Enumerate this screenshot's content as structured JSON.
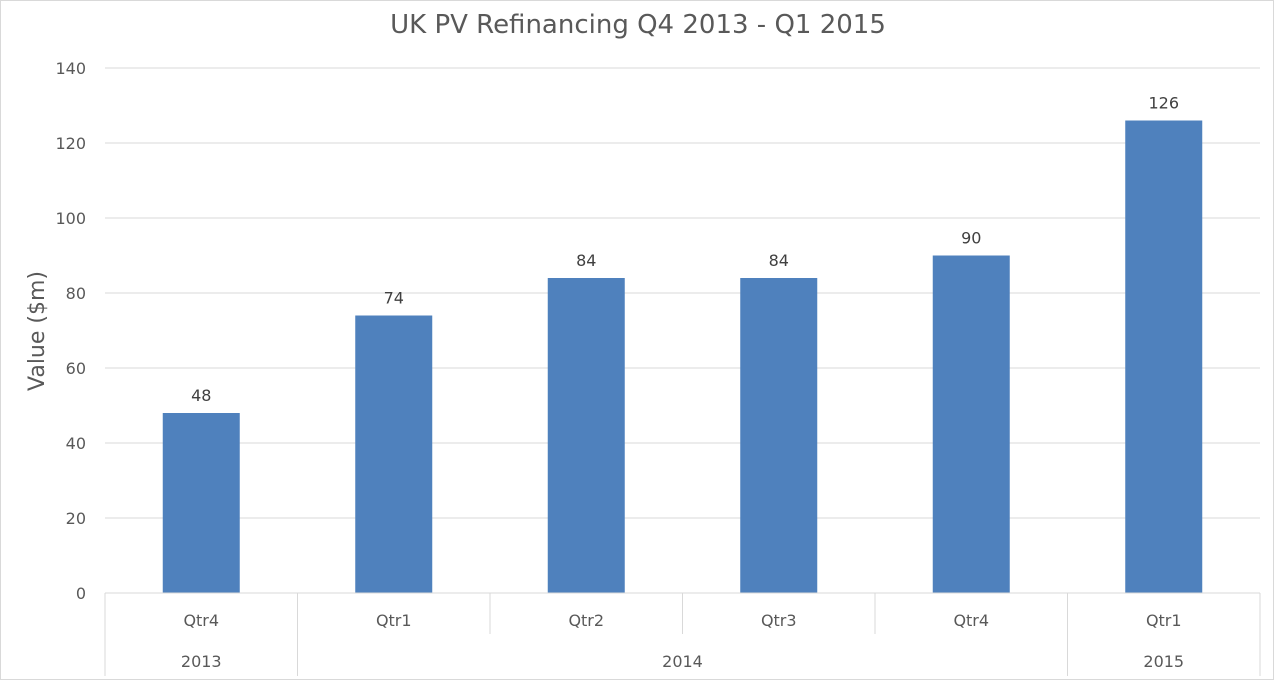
{
  "chart_data": {
    "type": "bar",
    "title": "UK PV Refinancing Q4 2013 - Q1 2015",
    "ylabel": "Value ($m)",
    "ylim": [
      0,
      140
    ],
    "yticks": [
      0,
      20,
      40,
      60,
      80,
      100,
      120,
      140
    ],
    "categories": [
      "Qtr4",
      "Qtr1",
      "Qtr2",
      "Qtr3",
      "Qtr4",
      "Qtr1"
    ],
    "groups": [
      {
        "label": "2013",
        "span": 1
      },
      {
        "label": "2014",
        "span": 4
      },
      {
        "label": "2015",
        "span": 1
      }
    ],
    "values": [
      48,
      74,
      84,
      84,
      90,
      126
    ],
    "bar_color": "#4f81bd",
    "grid": true
  }
}
